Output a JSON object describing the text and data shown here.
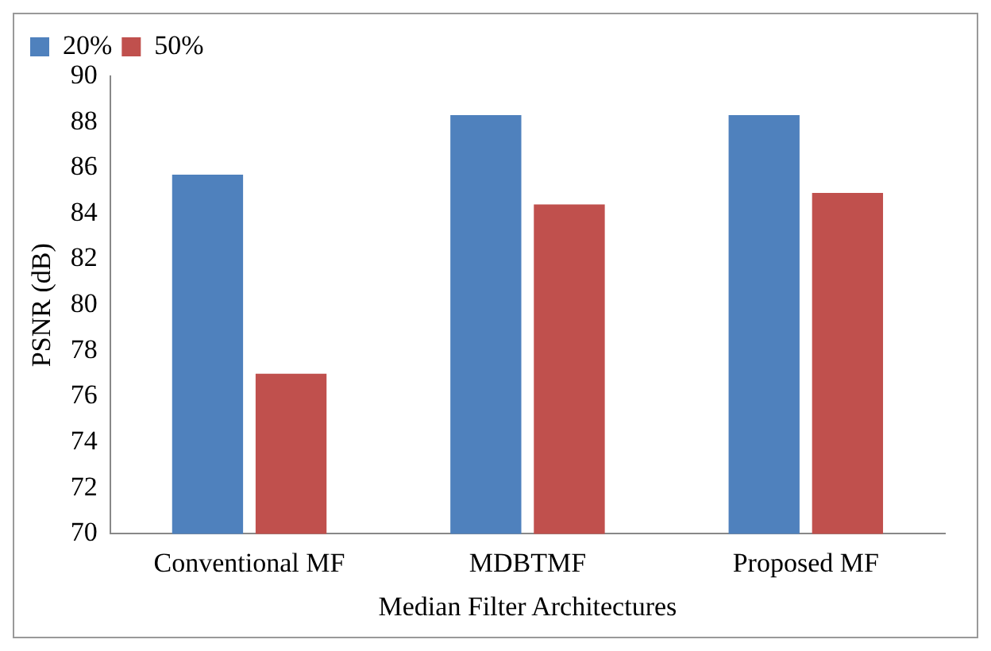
{
  "chart_data": {
    "type": "bar",
    "xlabel": "Median Filter Architectures",
    "ylabel": "PSNR (dB)",
    "categories": [
      "Conventional MF",
      "MDBTMF",
      "Proposed MF"
    ],
    "series": [
      {
        "name": "20%",
        "color": "#4f81bd",
        "values": [
          85.7,
          88.3,
          88.3
        ]
      },
      {
        "name": "50%",
        "color": "#c0504d",
        "values": [
          77.0,
          84.4,
          84.9
        ]
      }
    ],
    "ylim": [
      70,
      90
    ],
    "yticks": [
      70,
      72,
      74,
      76,
      78,
      80,
      82,
      84,
      86,
      88,
      90
    ],
    "grid": false,
    "legend": "top left"
  }
}
